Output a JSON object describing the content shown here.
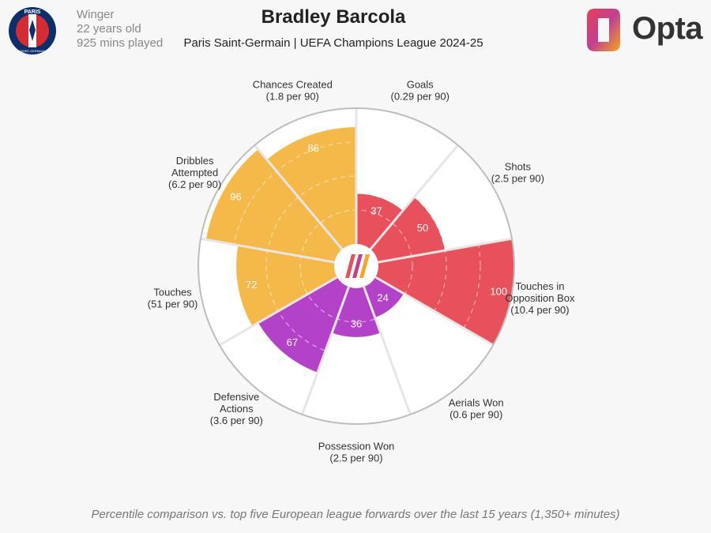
{
  "header": {
    "title": "Bradley Barcola",
    "subtitle": "Paris Saint-Germain | UEFA Champions League 2024-25",
    "position": "Winger",
    "age": "22 years old",
    "minutes": "925 mins played"
  },
  "crest": {
    "top_text": "PARIS",
    "bottom_text": "SAINT-GERMAIN"
  },
  "brand": {
    "name": "Opta"
  },
  "footnote": "Percentile comparison vs. top five European league forwards over the last 15 years (1,350+ minutes)",
  "colors": {
    "attacking": "#e8505b",
    "possession": "#f5b94a",
    "defending": "#b342c8",
    "ring": "#bdbdbd",
    "grid": "#dddddd",
    "divider": "#ffffff",
    "background": "#f7f7f7"
  },
  "chart_data": {
    "type": "polar-bar",
    "scale": [
      0,
      100
    ],
    "start_angle_deg": 0,
    "direction": "clockwise",
    "metrics": [
      {
        "name": "Goals",
        "label_lines": [
          "Goals",
          "(0.29 per 90)"
        ],
        "value": 37,
        "group": "attacking"
      },
      {
        "name": "Shots",
        "label_lines": [
          "Shots",
          "(2.5 per 90)"
        ],
        "value": 50,
        "group": "attacking"
      },
      {
        "name": "Touches in Opposition Box",
        "label_lines": [
          "Touches in",
          "Opposition Box",
          "(10.4 per 90)"
        ],
        "value": 100,
        "group": "attacking"
      },
      {
        "name": "Aerials Won",
        "label_lines": [
          "Aerials Won",
          "(0.6 per 90)"
        ],
        "value": 24,
        "group": "defending"
      },
      {
        "name": "Possession Won",
        "label_lines": [
          "Possession Won",
          "(2.5 per 90)"
        ],
        "value": 36,
        "group": "defending"
      },
      {
        "name": "Defensive Actions",
        "label_lines": [
          "Defensive",
          "Actions",
          "(3.6 per 90)"
        ],
        "value": 67,
        "group": "defending"
      },
      {
        "name": "Touches",
        "label_lines": [
          "Touches",
          "(51 per 90)"
        ],
        "value": 72,
        "group": "possession"
      },
      {
        "name": "Dribbles Attempted",
        "label_lines": [
          "Dribbles",
          "Attempted",
          "(6.2 per 90)"
        ],
        "value": 96,
        "group": "possession"
      },
      {
        "name": "Chances Created",
        "label_lines": [
          "Chances Created",
          "(1.8 per 90)"
        ],
        "value": 86,
        "group": "possession"
      }
    ]
  }
}
